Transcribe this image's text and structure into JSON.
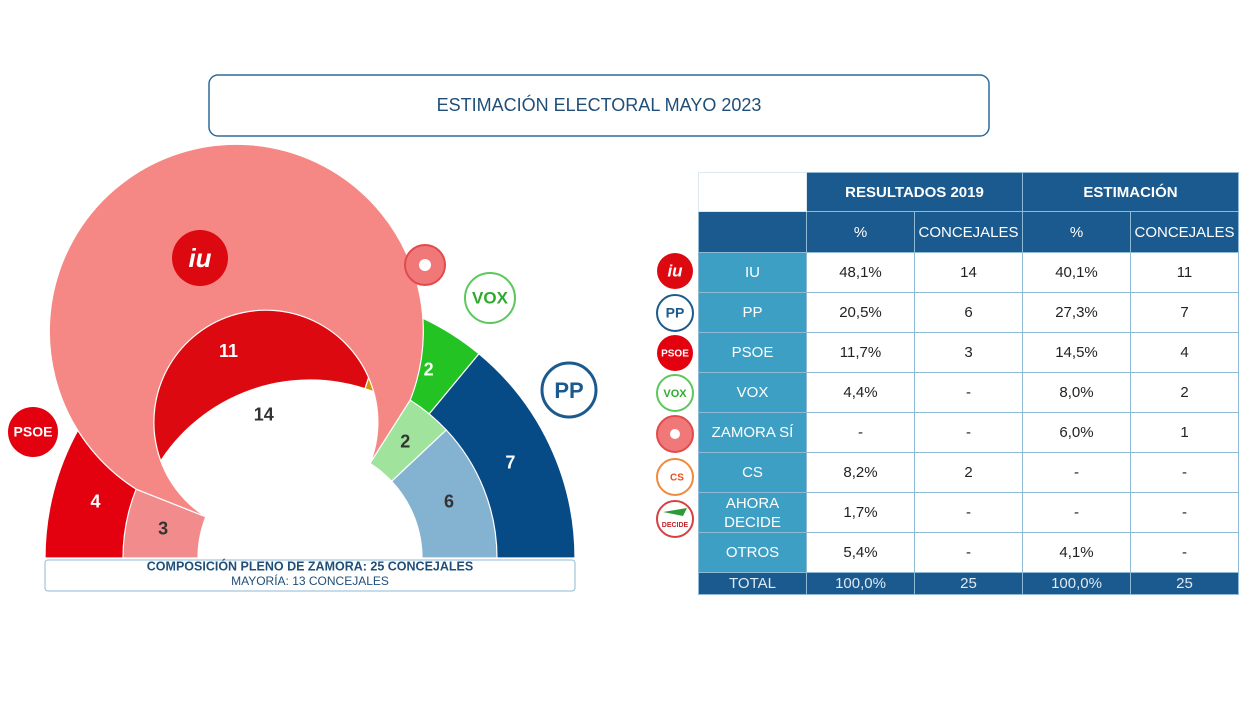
{
  "title": "ESTIMACIÓN ELECTORAL MAYO 2023",
  "chart_data": {
    "type": "hemicycle",
    "caption": "COMPOSICIÓN PLENO DE ZAMORA: 25 CONCEJALES",
    "subcaption": "MAYORÍA: 13 CONCEJALES",
    "rings": [
      {
        "values": [
          4,
          11,
          1,
          2,
          7
        ],
        "colors": [
          "#e3000f",
          "#dc0a10",
          "#d4960f",
          "#22c322",
          "#064a86"
        ]
      },
      {
        "values": [
          3,
          14,
          2,
          6
        ],
        "colors": [
          "#f28b8b",
          "#f58884",
          "#9fe39d",
          "#83b3d1"
        ]
      }
    ]
  },
  "logos": {
    "psoe": "PSOE",
    "iu": "iu",
    "vox": "VOX",
    "pp": "PP",
    "cs": "CS",
    "decide": "DECIDE"
  },
  "table": {
    "groups": [
      "RESULTADOS 2019",
      "ESTIMACIÓN"
    ],
    "columns": [
      "%",
      "CONCEJALES",
      "%",
      "CONCEJALES"
    ],
    "rows": [
      [
        "IU",
        "48,1%",
        "14",
        "40,1%",
        "11"
      ],
      [
        "PP",
        "20,5%",
        "6",
        "27,3%",
        "7"
      ],
      [
        "PSOE",
        "11,7%",
        "3",
        "14,5%",
        "4"
      ],
      [
        "VOX",
        "4,4%",
        "-",
        "8,0%",
        "2"
      ],
      [
        "ZAMORA SÍ",
        "-",
        "-",
        "6,0%",
        "1"
      ],
      [
        "CS",
        "8,2%",
        "2",
        "-",
        "-"
      ],
      [
        "AHORA DECIDE",
        "1,7%",
        "-",
        "-",
        "-"
      ],
      [
        "OTROS",
        "5,4%",
        "-",
        "4,1%",
        "-"
      ]
    ],
    "total": [
      "TOTAL",
      "100,0%",
      "25",
      "100,0%",
      "25"
    ]
  }
}
